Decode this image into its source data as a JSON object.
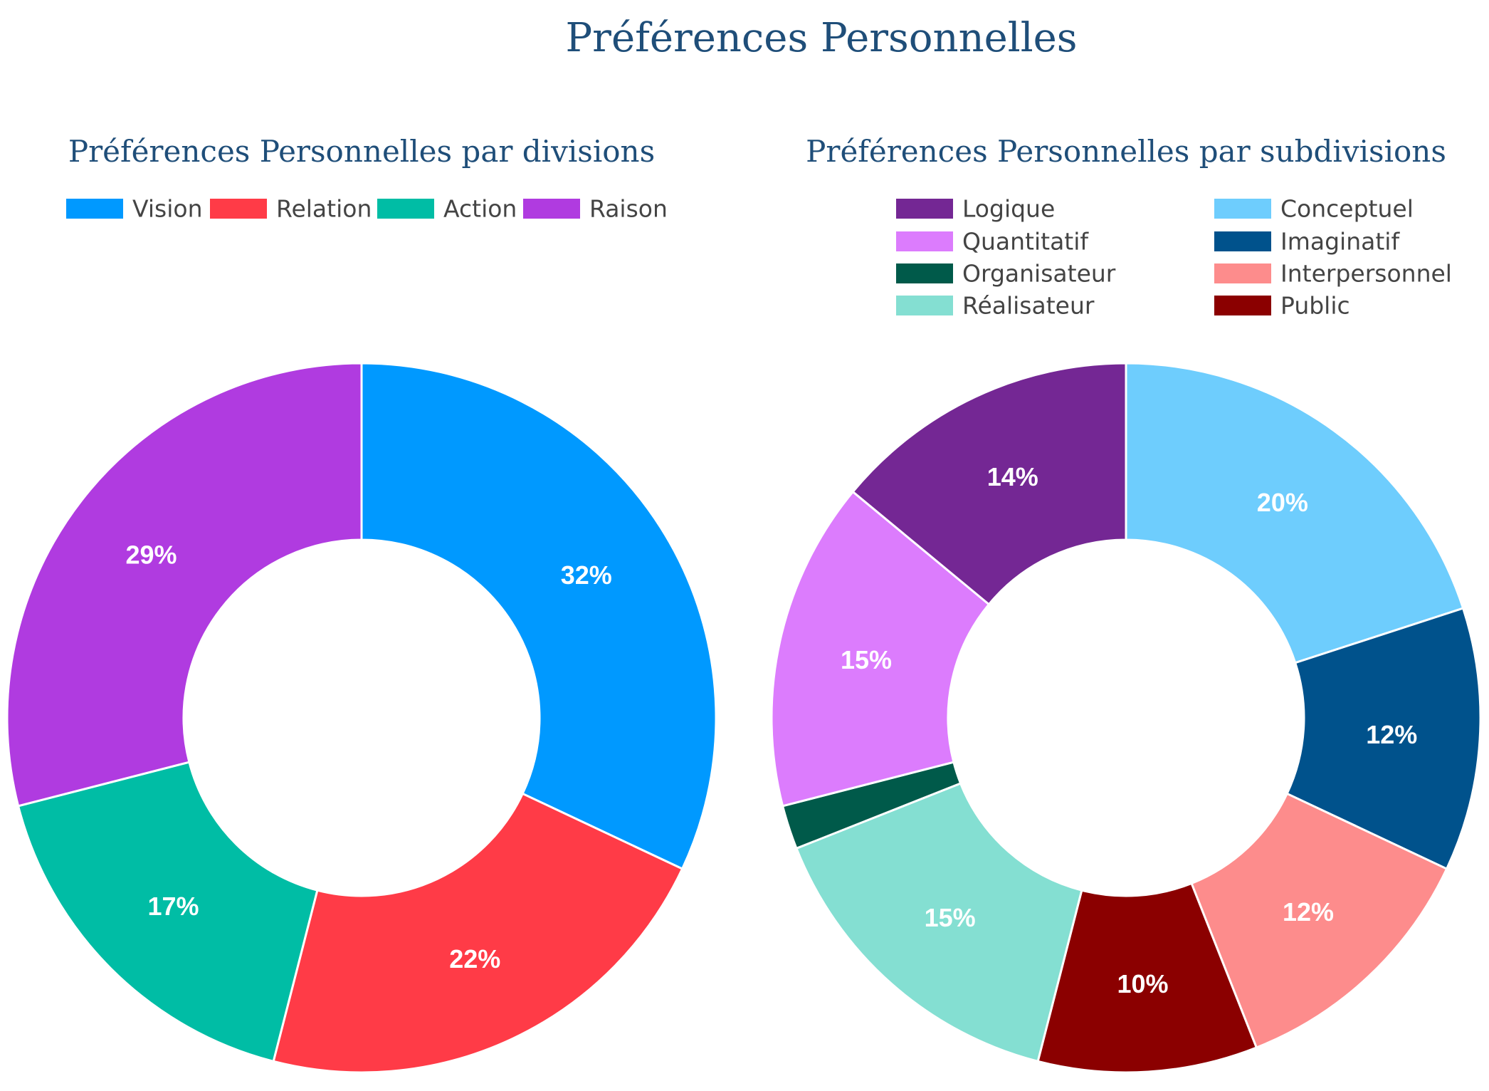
{
  "title": "Préférences Personnelles",
  "chart_data": [
    {
      "type": "pie",
      "donut": true,
      "title": "Préférences Personnelles par divisions",
      "legend_position": "top",
      "slices": [
        {
          "name": "Vision",
          "value": 32,
          "label": "32%",
          "color": "#0099ff"
        },
        {
          "name": "Relation",
          "value": 22,
          "label": "22%",
          "color": "#ff3b47"
        },
        {
          "name": "Action",
          "value": 17,
          "label": "17%",
          "color": "#00bda5"
        },
        {
          "name": "Raison",
          "value": 29,
          "label": "29%",
          "color": "#b03be0"
        }
      ]
    },
    {
      "type": "pie",
      "donut": true,
      "title": "Préférences Personnelles par subdivisions",
      "legend_position": "top",
      "legend": [
        "Logique",
        "Conceptuel",
        "Quantitatif",
        "Imaginatif",
        "Organisateur",
        "Interpersonnel",
        "Réalisateur",
        "Public"
      ],
      "slices": [
        {
          "name": "Conceptuel",
          "value": 20,
          "label": "20%",
          "color": "#6ecdfd"
        },
        {
          "name": "Imaginatif",
          "value": 12,
          "label": "12%",
          "color": "#00528c"
        },
        {
          "name": "Interpersonnel",
          "value": 12,
          "label": "12%",
          "color": "#fd8c8c"
        },
        {
          "name": "Public",
          "value": 10,
          "label": "10%",
          "color": "#8b0000"
        },
        {
          "name": "Réalisateur",
          "value": 15,
          "label": "15%",
          "color": "#84dfd2"
        },
        {
          "name": "Organisateur",
          "value": 2,
          "label": "",
          "color": "#005a4a"
        },
        {
          "name": "Quantitatif",
          "value": 15,
          "label": "15%",
          "color": "#dc7cfd"
        },
        {
          "name": "Logique",
          "value": 14,
          "label": "14%",
          "color": "#742794"
        }
      ]
    }
  ]
}
